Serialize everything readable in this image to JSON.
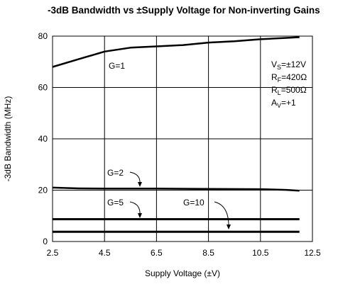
{
  "chart_data": {
    "type": "line",
    "title": "-3dB Bandwidth vs ±Supply Voltage for Non-inverting Gains",
    "xlabel": "Supply Voltage (±V)",
    "ylabel": "-3dB Bandwidth (MHz)",
    "xlim": [
      2.5,
      12.5
    ],
    "ylim": [
      0,
      80
    ],
    "xticks": [
      "2.5",
      "4.5",
      "6.5",
      "8.5",
      "10.5",
      "12.5"
    ],
    "yticks": [
      "0",
      "20",
      "40",
      "60",
      "80"
    ],
    "grid": true,
    "series": [
      {
        "name": "G=1",
        "x": [
          2.5,
          3.5,
          4.5,
          5.5,
          6.5,
          7.5,
          8.5,
          9.5,
          10.5,
          11.5,
          12.0
        ],
        "values": [
          68,
          71,
          74,
          75.5,
          76,
          76.5,
          77.5,
          78,
          78.8,
          79.3,
          79.6
        ]
      },
      {
        "name": "G=2",
        "x": [
          2.5,
          3.5,
          4.5,
          6.5,
          8.5,
          10.5,
          11.5,
          12.0
        ],
        "values": [
          21,
          20.7,
          20.6,
          20.6,
          20.5,
          20.4,
          20.1,
          19.8
        ]
      },
      {
        "name": "G=5",
        "x": [
          2.5,
          12.0
        ],
        "values": [
          8.7,
          8.7
        ]
      },
      {
        "name": "G=10",
        "x": [
          2.5,
          12.0
        ],
        "values": [
          3.8,
          3.8
        ]
      }
    ],
    "annotations": {
      "vs": "V",
      "vs_sub": "S",
      "vs_val": "=±12V",
      "rf": "R",
      "rf_sub": "F",
      "rf_val": "=420Ω",
      "rl": "R",
      "rl_sub": "L",
      "rl_val": "=500Ω",
      "av": "A",
      "av_sub": "V",
      "av_val": "=+1"
    }
  }
}
